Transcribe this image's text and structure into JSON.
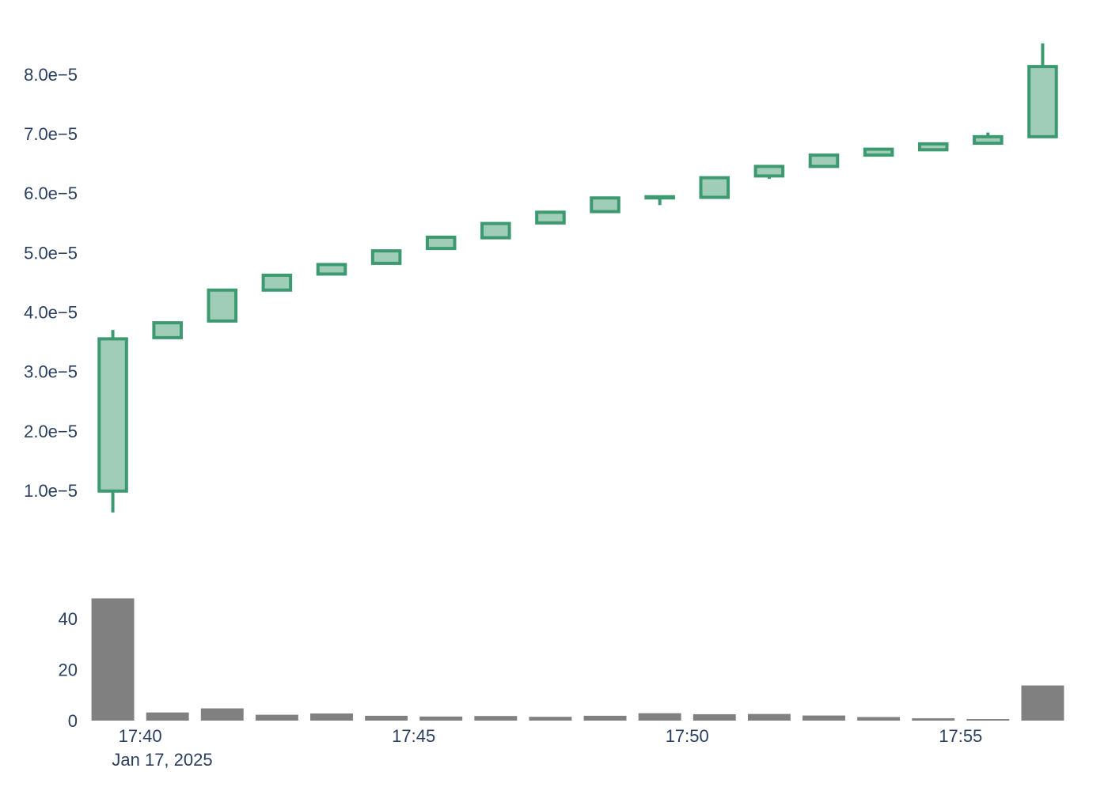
{
  "chart_data": [
    {
      "type": "candlestick",
      "x": [
        "17:39",
        "17:40",
        "17:41",
        "17:42",
        "17:43",
        "17:44",
        "17:45",
        "17:46",
        "17:47",
        "17:48",
        "17:49",
        "17:50",
        "17:51",
        "17:52",
        "17:53",
        "17:54",
        "17:55",
        "17:56"
      ],
      "open": [
        9.9e-06,
        3.57e-05,
        3.85e-05,
        4.37e-05,
        4.64e-05,
        4.82e-05,
        5.07e-05,
        5.25e-05,
        5.5e-05,
        5.69e-05,
        5.92e-05,
        5.93e-05,
        6.29e-05,
        6.45e-05,
        6.64e-05,
        6.73e-05,
        6.84e-05,
        6.95e-05
      ],
      "high": [
        3.7e-05,
        3.82e-05,
        4.37e-05,
        4.62e-05,
        4.8e-05,
        5.03e-05,
        5.26e-05,
        5.49e-05,
        5.68e-05,
        5.92e-05,
        5.94e-05,
        6.26e-05,
        6.45e-05,
        6.64e-05,
        6.76e-05,
        6.83e-05,
        7.02e-05,
        8.52e-05
      ],
      "low": [
        6.3e-06,
        3.57e-05,
        3.85e-05,
        4.37e-05,
        4.64e-05,
        4.82e-05,
        5.07e-05,
        5.25e-05,
        5.5e-05,
        5.69e-05,
        5.8e-05,
        5.93e-05,
        6.24e-05,
        6.45e-05,
        6.64e-05,
        6.73e-05,
        6.84e-05,
        6.95e-05
      ],
      "close": [
        3.55e-05,
        3.82e-05,
        4.37e-05,
        4.62e-05,
        4.8e-05,
        5.03e-05,
        5.26e-05,
        5.49e-05,
        5.68e-05,
        5.92e-05,
        5.94e-05,
        6.26e-05,
        6.45e-05,
        6.64e-05,
        6.74e-05,
        6.83e-05,
        6.95e-05,
        8.13e-05
      ],
      "y_ticks": [
        "1.0e−5",
        "2.0e−5",
        "3.0e−5",
        "4.0e−5",
        "5.0e−5",
        "6.0e−5",
        "7.0e−5",
        "8.0e−5"
      ],
      "y_tick_values": [
        1e-05,
        2e-05,
        3e-05,
        4e-05,
        5e-05,
        6e-05,
        7e-05,
        8e-05
      ],
      "ylim": [
        -1.3e-06,
        8.85e-05
      ],
      "colors": {
        "increasing_line": "#3d9970",
        "increasing_fill": "#9fcdb8"
      }
    },
    {
      "type": "bar",
      "x": [
        "17:39",
        "17:40",
        "17:41",
        "17:42",
        "17:43",
        "17:44",
        "17:45",
        "17:46",
        "17:47",
        "17:48",
        "17:49",
        "17:50",
        "17:51",
        "17:52",
        "17:53",
        "17:54",
        "17:55",
        "17:56"
      ],
      "values": [
        48,
        3.2,
        4.8,
        2.3,
        2.8,
        1.9,
        1.6,
        1.8,
        1.5,
        1.9,
        2.9,
        2.5,
        2.6,
        2.0,
        1.4,
        0.9,
        0.6,
        13.8
      ],
      "y_ticks": [
        "0",
        "20",
        "40"
      ],
      "y_tick_values": [
        0,
        20,
        40
      ],
      "ylim": [
        0,
        50
      ],
      "colors": {
        "bar": "#808080"
      }
    }
  ],
  "x_axis": {
    "ticks": [
      {
        "label": "17:40",
        "at": "17:40"
      },
      {
        "label": "17:45",
        "at": "17:45"
      },
      {
        "label": "17:50",
        "at": "17:50"
      },
      {
        "label": "17:55",
        "at": "17:55"
      }
    ],
    "date_label": "Jan 17, 2025"
  }
}
